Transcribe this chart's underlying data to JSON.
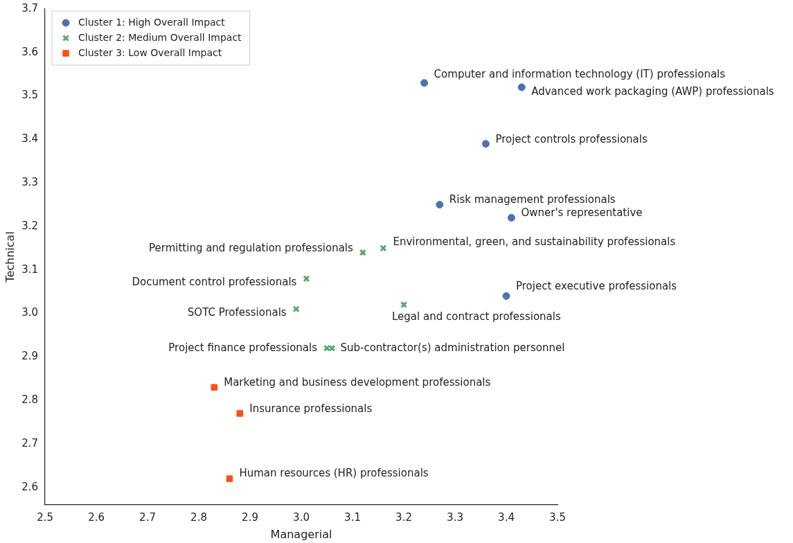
{
  "chart_data": {
    "type": "scatter",
    "xlabel": "Managerial",
    "ylabel": "Technical",
    "xlim": [
      2.5,
      3.5
    ],
    "ylim": [
      2.56,
      3.7
    ],
    "xticks": [
      2.5,
      2.6,
      2.7,
      2.8,
      2.9,
      {
        "value": 3,
        "label": "3.0"
      },
      3.1,
      3.2,
      3.3,
      3.4,
      3.5
    ],
    "yticks": [
      2.6,
      2.7,
      2.8,
      2.9,
      {
        "value": 3,
        "label": "3.0"
      },
      3.1,
      3.2,
      3.3,
      3.4,
      3.5,
      3.6,
      3.7
    ],
    "grid": false,
    "legend": "top left",
    "series": [
      {
        "name": "Cluster 1: High Overall Impact",
        "color": "#4c72b0",
        "marker": "circle",
        "x": [
          3.24,
          3.43,
          3.36,
          3.27,
          3.41,
          3.4
        ],
        "values": [
          3.53,
          3.52,
          3.39,
          3.25,
          3.22,
          3.04
        ]
      },
      {
        "name": "Cluster 2: Medium Overall Impact",
        "color": "#55a868",
        "marker": "cross",
        "x": [
          3.12,
          3.16,
          3.01,
          2.99,
          3.2,
          3.05,
          3.06
        ],
        "values": [
          3.14,
          3.15,
          3.08,
          3.01,
          3.02,
          2.92,
          2.92
        ]
      },
      {
        "name": "Cluster 3: Low Overall Impact",
        "color": "#ff4f12",
        "marker": "square",
        "x": [
          2.83,
          2.88,
          2.86
        ],
        "values": [
          2.83,
          2.77,
          2.62
        ]
      }
    ],
    "annotations": [
      {
        "text": "Computer and information technology (IT) professionals",
        "x": 3.24,
        "y": 3.53
      },
      {
        "text": "Advanced work packaging (AWP) professionals",
        "x": 3.43,
        "y": 3.52
      },
      {
        "text": "Project controls professionals",
        "x": 3.36,
        "y": 3.39
      },
      {
        "text": "Risk management professionals",
        "x": 3.27,
        "y": 3.25
      },
      {
        "text": "Owner's representative",
        "x": 3.41,
        "y": 3.22
      },
      {
        "text": "Project executive professionals",
        "x": 3.4,
        "y": 3.04
      },
      {
        "text": "Permitting and regulation professionals",
        "x": 3.12,
        "y": 3.14
      },
      {
        "text": "Environmental, green, and sustainability professionals",
        "x": 3.16,
        "y": 3.15
      },
      {
        "text": "Document control professionals",
        "x": 3.01,
        "y": 3.08
      },
      {
        "text": "SOTC Professionals",
        "x": 2.99,
        "y": 3.01
      },
      {
        "text": "Legal and contract professionals",
        "x": 3.2,
        "y": 3.02
      },
      {
        "text": "Project finance professionals",
        "x": 3.05,
        "y": 2.92
      },
      {
        "text": "Sub-contractor(s) administration personnel",
        "x": 3.06,
        "y": 2.92
      },
      {
        "text": "Marketing and business development professionals",
        "x": 2.83,
        "y": 2.83
      },
      {
        "text": "Insurance professionals",
        "x": 2.88,
        "y": 2.77
      },
      {
        "text": "Human resources (HR) professionals",
        "x": 2.86,
        "y": 2.62
      }
    ]
  }
}
